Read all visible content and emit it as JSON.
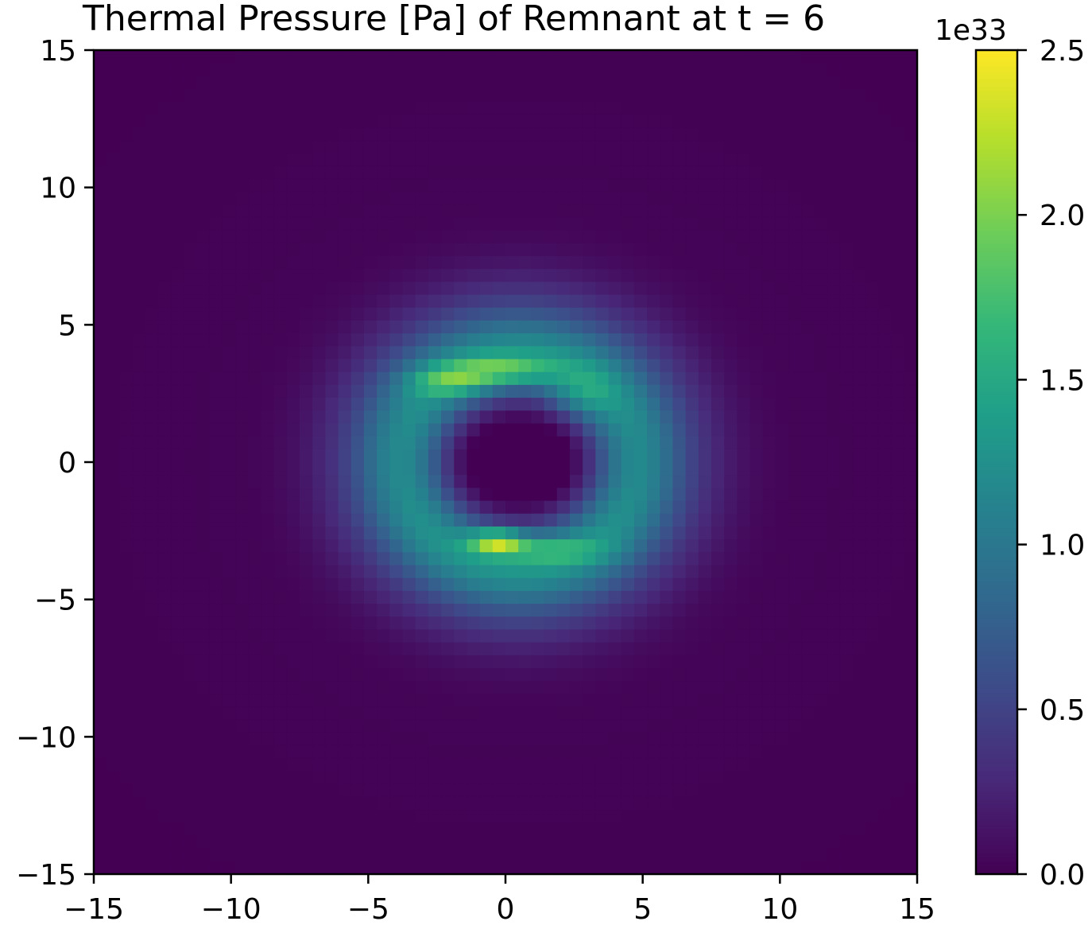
{
  "chart_data": {
    "type": "heatmap",
    "title": "Thermal Pressure [Pa] of Remnant at t = 6",
    "xlabel": "",
    "ylabel": "",
    "xlim": [
      -15,
      15
    ],
    "ylim": [
      -15,
      15
    ],
    "x_ticks": [
      -15,
      -10,
      -5,
      0,
      5,
      10,
      15
    ],
    "y_ticks": [
      -15,
      -10,
      -5,
      0,
      5,
      10,
      15
    ],
    "x_tick_labels": [
      "−15",
      "−10",
      "−5",
      "0",
      "5",
      "10",
      "15"
    ],
    "y_tick_labels": [
      "−15",
      "−10",
      "−5",
      "0",
      "5",
      "10",
      "15"
    ],
    "colormap": "viridis",
    "colorbar": {
      "range": [
        0.0,
        2.5
      ],
      "ticks": [
        0.0,
        0.5,
        1.0,
        1.5,
        2.0,
        2.5
      ],
      "tick_labels": [
        "0.0",
        "0.5",
        "1.0",
        "1.5",
        "2.0",
        "2.5"
      ],
      "offset_label": "1e33"
    },
    "field_description": "Ring-shaped pressure field centred near (0.5, 0) with radius about 4; low-pressure cavity inside (|x|,|y| < ~3); peaks on the ring at (0, 3.3) ~1.9 and (-0.2, -2.9) ~2.4; falls to ~0 beyond radius ~9.",
    "features": [
      {
        "x": 0.5,
        "y": 0.0,
        "ring_radius": 4.0,
        "ring_value": 1.2
      },
      {
        "x": -0.2,
        "y": 3.3,
        "value": 1.9
      },
      {
        "x": -0.2,
        "y": -2.9,
        "value": 2.4
      },
      {
        "x": 1.8,
        "y": -3.2,
        "value": 1.9
      }
    ]
  }
}
